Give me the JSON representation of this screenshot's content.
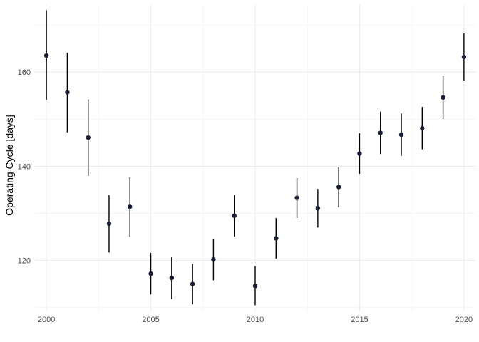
{
  "chart_data": {
    "type": "scatter",
    "title": "",
    "xlabel": "",
    "ylabel": "Operating Cycle [days]",
    "xlim": [
      1999.45,
      2020.55
    ],
    "ylim": [
      109.2,
      174.4
    ],
    "x_ticks": [
      2000,
      2005,
      2010,
      2015,
      2020
    ],
    "y_ticks": [
      120,
      140,
      160
    ],
    "grid": true,
    "series": [
      {
        "x": [
          2000,
          2001,
          2002,
          2003,
          2004,
          2005,
          2006,
          2007,
          2008,
          2009,
          2010,
          2011,
          2012,
          2013,
          2014,
          2015,
          2016,
          2017,
          2018,
          2019,
          2020
        ],
        "y": [
          163.5,
          155.7,
          146.1,
          127.8,
          131.4,
          117.2,
          116.3,
          115.0,
          120.2,
          129.5,
          114.6,
          124.7,
          133.3,
          131.1,
          135.6,
          142.7,
          147.1,
          146.7,
          148.1,
          154.6,
          163.2
        ],
        "lower": [
          154.1,
          147.2,
          138.0,
          121.7,
          125.0,
          112.8,
          111.8,
          110.7,
          115.8,
          125.1,
          110.5,
          120.4,
          129.0,
          127.0,
          131.3,
          138.4,
          142.6,
          142.2,
          143.6,
          150.0,
          158.2
        ],
        "upper": [
          173.1,
          164.1,
          154.2,
          133.9,
          137.7,
          121.6,
          120.7,
          119.3,
          124.5,
          133.9,
          118.8,
          129.0,
          137.5,
          135.2,
          139.8,
          147.0,
          151.6,
          151.2,
          152.6,
          159.2,
          168.2
        ]
      }
    ],
    "colors": {
      "point": "#1a1f36",
      "errorbar": "#000000",
      "grid_major": "#ebebeb",
      "grid_minor": "#f5f5f5"
    }
  }
}
